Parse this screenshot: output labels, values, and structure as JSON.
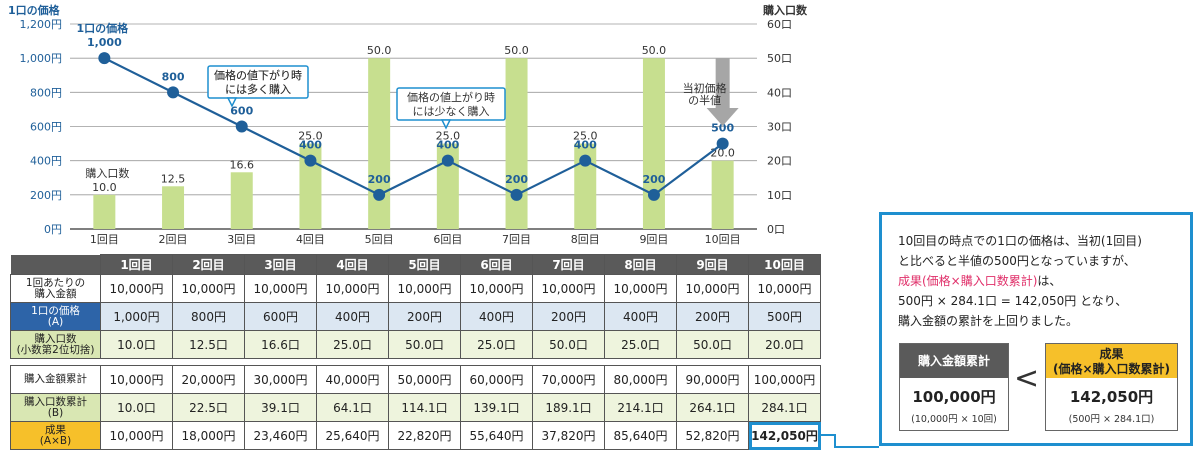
{
  "chart_data": {
    "type": "bar+line",
    "categories": [
      "1回目",
      "2回目",
      "3回目",
      "4回目",
      "5回目",
      "6回目",
      "7回目",
      "8回目",
      "9回目",
      "10回目"
    ],
    "left_axis": {
      "title": "1口の価格",
      "ticks": [
        "0円",
        "200円",
        "400円",
        "600円",
        "800円",
        "1,000円",
        "1,200円"
      ],
      "range": [
        0,
        1200
      ]
    },
    "right_axis": {
      "title": "購入口数",
      "ticks": [
        "0口",
        "10口",
        "20口",
        "30口",
        "40口",
        "50口",
        "60口"
      ],
      "range": [
        0,
        60
      ]
    },
    "line_series": {
      "name": "1口の価格",
      "values": [
        1000,
        800,
        600,
        400,
        200,
        400,
        200,
        400,
        200,
        500
      ],
      "labels": [
        "1,000",
        "800",
        "600",
        "400",
        "200",
        "400",
        "200",
        "400",
        "200",
        "500"
      ]
    },
    "bar_series": {
      "name": "購入口数",
      "values": [
        10.0,
        12.5,
        16.6,
        25.0,
        50.0,
        25.0,
        50.0,
        25.0,
        50.0,
        20.0
      ],
      "labels": [
        "10.0",
        "12.5",
        "16.6",
        "25.0",
        "50.0",
        "25.0",
        "50.0",
        "25.0",
        "50.0",
        "20.0"
      ]
    },
    "annotations": {
      "down": [
        "価格の値下がり時",
        "には多く購入"
      ],
      "up": [
        "価格の値上がり時",
        "には少なく購入"
      ],
      "half": [
        "当初価格",
        "の半値"
      ]
    }
  },
  "table": {
    "headers": [
      "1回目",
      "2回目",
      "3回目",
      "4回目",
      "5回目",
      "6回目",
      "7回目",
      "8回目",
      "9回目",
      "10回目"
    ],
    "rows": [
      {
        "label": "1回あたりの\n購入金額",
        "values": [
          "10,000円",
          "10,000円",
          "10,000円",
          "10,000円",
          "10,000円",
          "10,000円",
          "10,000円",
          "10,000円",
          "10,000円",
          "10,000円"
        ]
      },
      {
        "label": "1口の価格\n(A)",
        "values": [
          "1,000円",
          "800円",
          "600円",
          "400円",
          "200円",
          "400円",
          "200円",
          "400円",
          "200円",
          "500円"
        ]
      },
      {
        "label": "購入口数\n(小数第2位切捨)",
        "values": [
          "10.0口",
          "12.5口",
          "16.6口",
          "25.0口",
          "50.0口",
          "25.0口",
          "50.0口",
          "25.0口",
          "50.0口",
          "20.0口"
        ]
      },
      {
        "label": "購入金額累計",
        "values": [
          "10,000円",
          "20,000円",
          "30,000円",
          "40,000円",
          "50,000円",
          "60,000円",
          "70,000円",
          "80,000円",
          "90,000円",
          "100,000円"
        ]
      },
      {
        "label": "購入口数累計\n(B)",
        "values": [
          "10.0口",
          "22.5口",
          "39.1口",
          "64.1口",
          "114.1口",
          "139.1口",
          "189.1口",
          "214.1口",
          "264.1口",
          "284.1口"
        ]
      },
      {
        "label": "成果\n(A×B)",
        "values": [
          "10,000円",
          "18,000円",
          "23,460円",
          "25,640円",
          "22,820円",
          "55,640円",
          "37,820円",
          "85,640円",
          "52,820円",
          "142,050円"
        ]
      }
    ]
  },
  "callout": {
    "line1": "10回目の時点での1口の価格は、当初(1回目)",
    "line2": "と比べると半値の500円となっていますが、",
    "line3": "成果(価格×購入口数累計)",
    "line3b": "は、",
    "line4": "500円 × 284.1口 = 142,050円 となり、",
    "line5": "購入金額の累計を上回りました。",
    "box1_title": "購入金額累計",
    "box1_value": "100,000円",
    "box1_sub": "(10,000円 × 10回)",
    "compare": "<",
    "box2_title_1": "成果",
    "box2_title_2": "(価格×購入口数累計)",
    "box2_value": "142,050円",
    "box2_sub": "(500円 × 284.1口)"
  }
}
